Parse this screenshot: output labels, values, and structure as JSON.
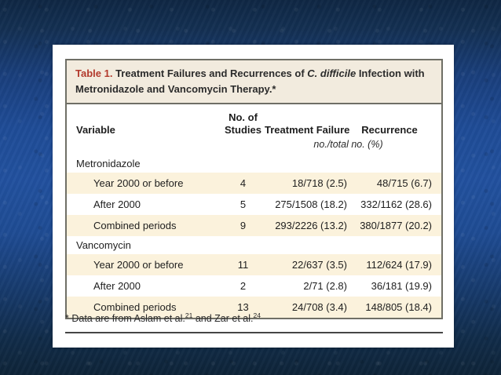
{
  "colors": {
    "background_blue": "#22519f",
    "background_dark_navy": "#0f2744",
    "panel_white": "#ffffff",
    "title_block_beige": "#f2ebde",
    "row_shade_cream": "#fbf2dc",
    "border_gray": "#6f6f66",
    "title_accent_red": "#b23a2d",
    "text_dark": "#1e1e1e"
  },
  "table": {
    "title": {
      "label": "Table 1.",
      "before_italic": "Treatment Failures and Recurrences of",
      "italic": "C. difficile",
      "after_italic": "Infection with Metronidazole and Vancomycin Therapy.*"
    },
    "columns": {
      "variable": "Variable",
      "studies_line1": "No. of",
      "studies_line2": "Studies",
      "treatment_failure": "Treatment Failure",
      "recurrence": "Recurrence",
      "units": "no./total no. (%)"
    },
    "groups": [
      {
        "label": "Metronidazole",
        "rows": [
          {
            "variable": "Year 2000 or before",
            "studies": "4",
            "treatment_failure": "18/718 (2.5)",
            "recurrence": "48/715 (6.7)"
          },
          {
            "variable": "After 2000",
            "studies": "5",
            "treatment_failure": "275/1508 (18.2)",
            "recurrence": "332/1162 (28.6)"
          },
          {
            "variable": "Combined periods",
            "studies": "9",
            "treatment_failure": "293/2226 (13.2)",
            "recurrence": "380/1877 (20.2)"
          }
        ]
      },
      {
        "label": "Vancomycin",
        "rows": [
          {
            "variable": "Year 2000 or before",
            "studies": "11",
            "treatment_failure": "22/637 (3.5)",
            "recurrence": "112/624 (17.9)"
          },
          {
            "variable": "After 2000",
            "studies": "2",
            "treatment_failure": "2/71 (2.8)",
            "recurrence": "36/181 (19.9)"
          },
          {
            "variable": "Combined periods",
            "studies": "13",
            "treatment_failure": "24/708 (3.4)",
            "recurrence": "148/805 (18.4)"
          }
        ]
      }
    ],
    "footnote": {
      "marker": "*",
      "text1": "Data are from Aslam et al.",
      "ref1": "21",
      "text2": "and Zar et al.",
      "ref2": "24"
    }
  }
}
